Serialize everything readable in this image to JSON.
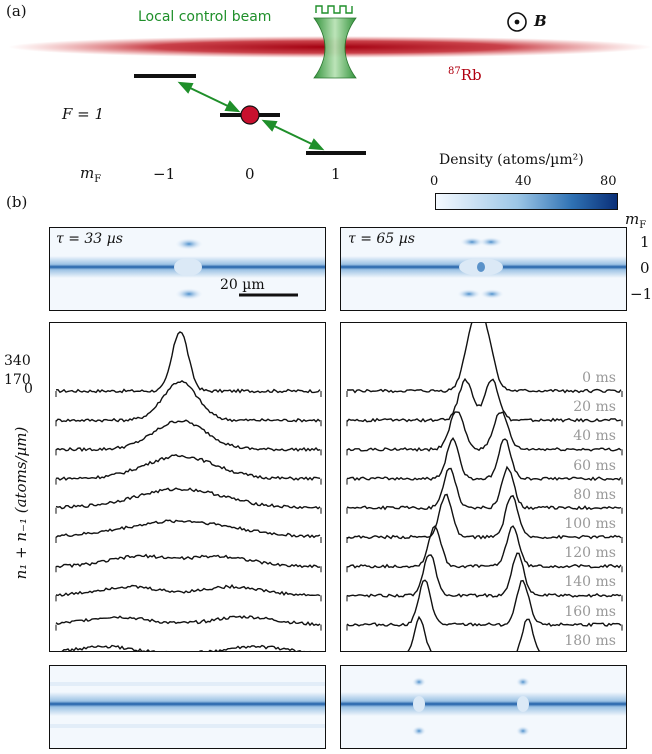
{
  "panel_a": {
    "label": "(a)",
    "beam_label": "Local control beam",
    "field_label": "B",
    "species_label": "Rb",
    "species_mass": "87",
    "f_label": "F = 1",
    "mf_axis_label": "m",
    "mf_axis_sub": "F",
    "mf_values": [
      "−1",
      "0",
      "1"
    ],
    "colors": {
      "beam": "#1f8f2a",
      "cloud": "#b00010",
      "atom": "#c8102e"
    }
  },
  "colorbar": {
    "title": "Density (atoms/µm²)",
    "ticks": [
      "0",
      "40",
      "80"
    ]
  },
  "panel_b": {
    "label": "(b)",
    "images_top": [
      {
        "tau": "τ = 33 µs"
      },
      {
        "tau": "τ = 65 µs"
      }
    ],
    "scale_bar": "20 µm",
    "mf_side_label": "m",
    "mf_side_sub": "F",
    "mf_side_values": [
      "1",
      "0",
      "−1"
    ],
    "ylabel": "n₁ + n₋₁ (atoms/µm)",
    "yticks": [
      "340",
      "170",
      "0"
    ],
    "time_labels": [
      "0 ms",
      "20 ms",
      "40 ms",
      "60 ms",
      "80 ms",
      "100 ms",
      "120 ms",
      "140 ms",
      "160 ms",
      "180 ms"
    ]
  }
}
